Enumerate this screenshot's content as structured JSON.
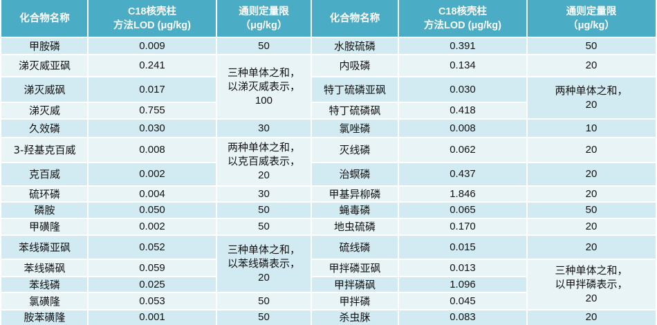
{
  "header": {
    "col_compound": "化合物名称",
    "col_lod": "C18核壳柱\n方法LOD (μg/kg)",
    "col_limit": "通则定量限\n（μg/kg）"
  },
  "left": [
    {
      "name": "甲胺磷",
      "lod": "0.009"
    },
    {
      "name": "涕灭威亚砜",
      "lod": "0.241"
    },
    {
      "name": "涕灭威砜",
      "lod": "0.017"
    },
    {
      "name": "涕灭威",
      "lod": "0.755"
    },
    {
      "name": "久效磷",
      "lod": "0.030"
    },
    {
      "name": "3-羟基克百威",
      "lod": "0.008"
    },
    {
      "name": "克百威",
      "lod": "0.002"
    },
    {
      "name": "硫环磷",
      "lod": "0.004"
    },
    {
      "name": "磷胺",
      "lod": "0.050"
    },
    {
      "name": "甲磺隆",
      "lod": "0.002"
    },
    {
      "name": "苯线磷亚砜",
      "lod": "0.052"
    },
    {
      "name": "苯线磷砜",
      "lod": "0.059"
    },
    {
      "name": "苯线磷",
      "lod": "0.025"
    },
    {
      "name": "氯磺隆",
      "lod": "0.053"
    },
    {
      "name": "胺苯磺隆",
      "lod": "0.001"
    }
  ],
  "left_limits": [
    {
      "text": "50"
    },
    {
      "text": "三种单体之和，\n以涕灭威表示，\n100"
    },
    {
      "text": "30"
    },
    {
      "text": "两种单体之和，\n以克百威表示，\n20"
    },
    {
      "text": "30"
    },
    {
      "text": "50"
    },
    {
      "text": "50"
    },
    {
      "text": "三种单体之和，\n以苯线磷表示，\n20"
    },
    {
      "text": "50"
    },
    {
      "text": "50"
    }
  ],
  "right": [
    {
      "name": "水胺硫磷",
      "lod": "0.391"
    },
    {
      "name": "内吸磷",
      "lod": "0.134"
    },
    {
      "name": "特丁硫磷亚砜",
      "lod": "0.030"
    },
    {
      "name": "特丁硫磷砜",
      "lod": "0.418"
    },
    {
      "name": "氯唑磷",
      "lod": "0.008"
    },
    {
      "name": "灭线磷",
      "lod": "0.062"
    },
    {
      "name": "治螟磷",
      "lod": "0.437"
    },
    {
      "name": "甲基异柳磷",
      "lod": "1.846"
    },
    {
      "name": "蝇毒磷",
      "lod": "0.065"
    },
    {
      "name": "地虫硫磷",
      "lod": "0.170"
    },
    {
      "name": "硫线磷",
      "lod": "0.015"
    },
    {
      "name": "甲拌磷亚砜",
      "lod": "0.013"
    },
    {
      "name": "甲拌磷砜",
      "lod": "1.096"
    },
    {
      "name": "甲拌磷",
      "lod": "0.045"
    },
    {
      "name": "杀虫脒",
      "lod": "0.083"
    }
  ],
  "right_limits": [
    {
      "text": "50"
    },
    {
      "text": "20"
    },
    {
      "text": "两种单体之和，\n20"
    },
    {
      "text": "10"
    },
    {
      "text": "20"
    },
    {
      "text": "20"
    },
    {
      "text": "20"
    },
    {
      "text": "50"
    },
    {
      "text": "20"
    },
    {
      "text": "20"
    },
    {
      "text": "三种单体之和，\n以甲拌磷表示，\n20"
    },
    {
      "text": "20"
    }
  ],
  "colors": {
    "header_bg": "#4bacc6",
    "row_odd": "#d2eaf1",
    "row_even": "#e9f4f7",
    "grid": "#ffffff"
  }
}
